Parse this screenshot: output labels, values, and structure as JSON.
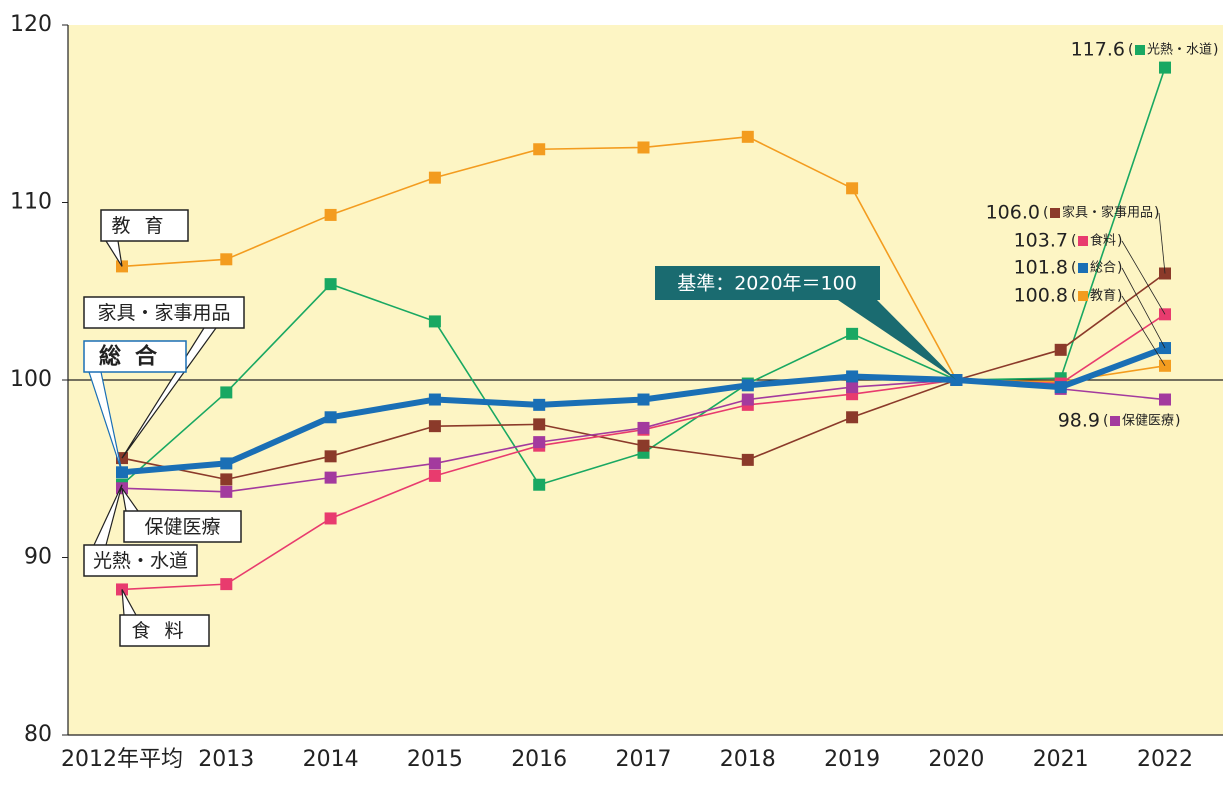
{
  "chart_data": {
    "type": "line",
    "categories": [
      "2012年平均",
      "2013",
      "2014",
      "2015",
      "2016",
      "2017",
      "2018",
      "2019",
      "2020",
      "2021",
      "2022"
    ],
    "ylim": [
      80,
      120
    ],
    "yticks": [
      80,
      90,
      100,
      110,
      120
    ],
    "baseline": 100,
    "annotation": "基準：2020年＝100",
    "series": [
      {
        "name": "教育",
        "color": "#f39c1f",
        "values": [
          106.4,
          106.8,
          109.3,
          111.4,
          113.0,
          113.1,
          113.7,
          110.8,
          100,
          99.9,
          100.8
        ]
      },
      {
        "name": "光熱・水道",
        "color": "#19a862",
        "values": [
          94.1,
          99.3,
          105.4,
          103.3,
          94.1,
          95.9,
          99.8,
          102.6,
          100,
          100.1,
          117.6
        ]
      },
      {
        "name": "家具・家事用品",
        "color": "#8b3a2a",
        "values": [
          95.6,
          94.4,
          95.7,
          97.4,
          97.5,
          96.3,
          95.5,
          97.9,
          100,
          101.7,
          106.0
        ],
        "value_labels": [
          null,
          null,
          null,
          null,
          null,
          null,
          null,
          null,
          null,
          null,
          "106.0"
        ]
      },
      {
        "name": "食料",
        "color": "#e83b6e",
        "values": [
          88.2,
          88.5,
          92.2,
          94.6,
          96.3,
          97.2,
          98.6,
          99.2,
          100,
          99.8,
          103.7
        ]
      },
      {
        "name": "保健医療",
        "color": "#a33a9e",
        "values": [
          93.9,
          93.7,
          94.5,
          95.3,
          96.5,
          97.3,
          98.9,
          99.6,
          100,
          99.5,
          98.9
        ]
      },
      {
        "name": "総合",
        "color": "#1a6fb5",
        "values": [
          94.8,
          95.3,
          97.9,
          98.9,
          98.6,
          98.9,
          99.7,
          100.2,
          100,
          99.6,
          101.8
        ]
      }
    ]
  }
}
